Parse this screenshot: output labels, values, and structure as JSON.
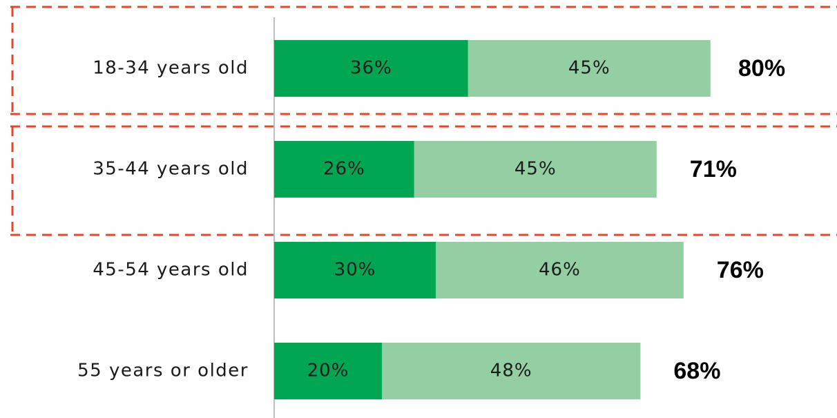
{
  "chart_data": {
    "type": "stacked-bar-horizontal",
    "categories": [
      "18-34 years old",
      "35-44 years old",
      "45-54 years old",
      "55 years or older"
    ],
    "series": [
      {
        "color": "#00a651",
        "values": [
          36,
          26,
          30,
          20
        ],
        "value_labels": [
          "36%",
          "26%",
          "30%",
          "20%"
        ]
      },
      {
        "color": "#93cfa2",
        "values": [
          45,
          45,
          46,
          48
        ],
        "value_labels": [
          "45%",
          "45%",
          "46%",
          "48%"
        ]
      }
    ],
    "totals": [
      80,
      71,
      76,
      68
    ],
    "total_labels": [
      "80%",
      "71%",
      "76%",
      "68%"
    ],
    "xlim": [
      0,
      100
    ]
  }
}
